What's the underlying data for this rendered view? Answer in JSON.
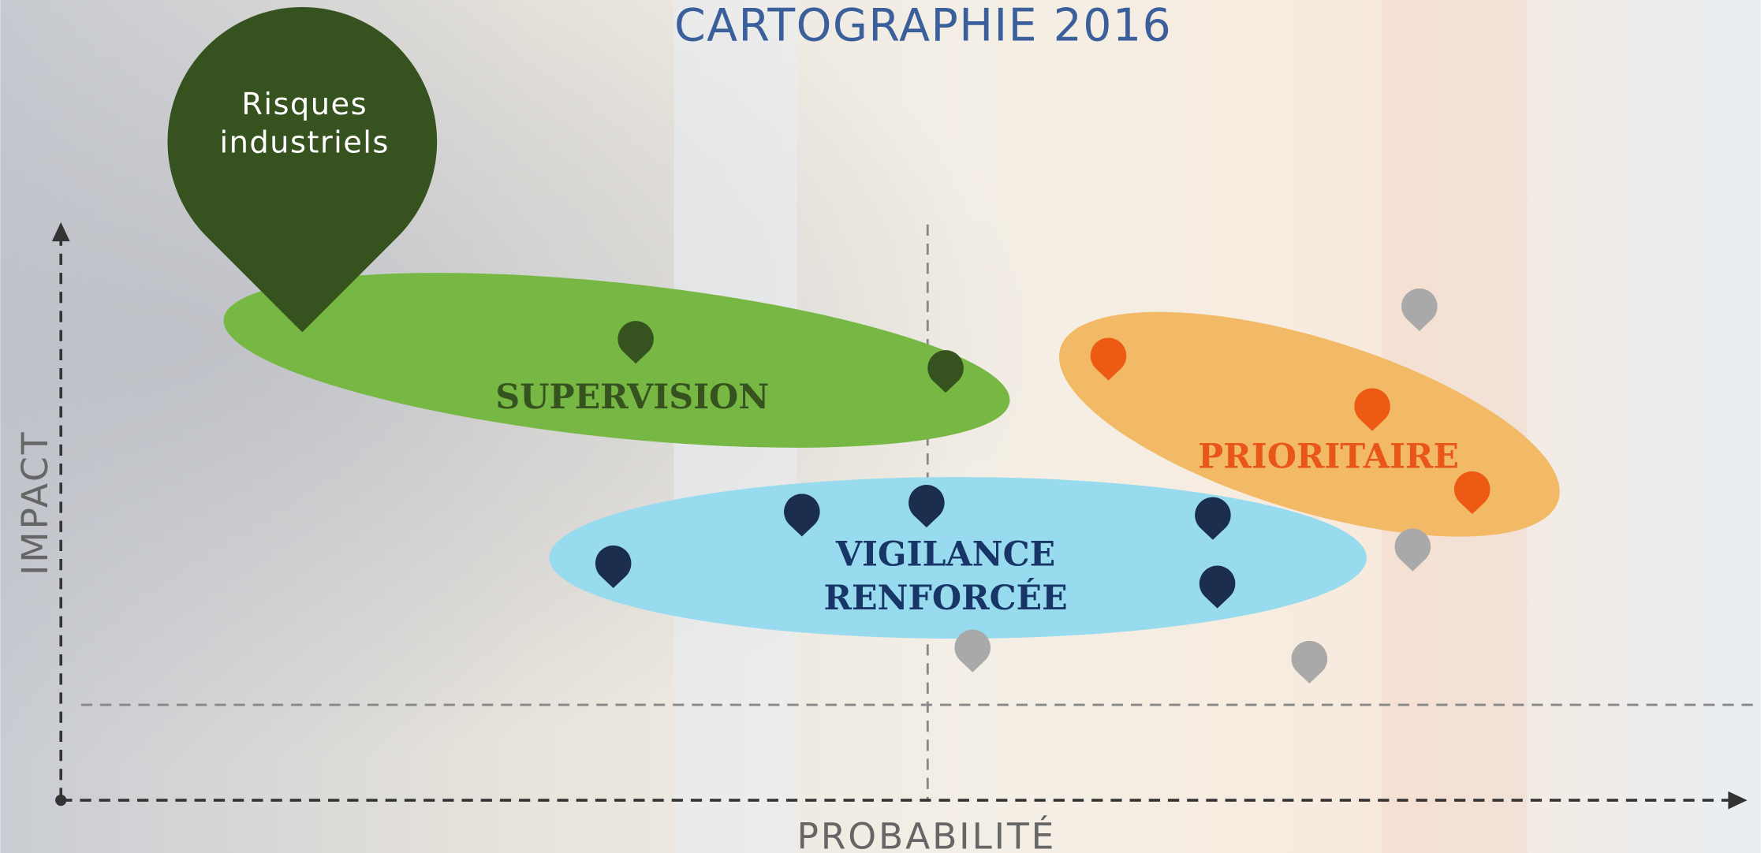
{
  "header": {
    "title": "CARTOGRAPHIE 2016"
  },
  "callout": {
    "lines": [
      "Risques",
      "industriels"
    ]
  },
  "zones": [
    {
      "lines": [
        "SUPERVISION"
      ]
    },
    {
      "lines": [
        "PRIORITAIRE"
      ]
    },
    {
      "lines": [
        "VIGILANCE",
        "RENFORCÉE"
      ]
    }
  ],
  "axes": {
    "y_label": "IMPACT",
    "x_label": "PROBABILITÉ"
  }
}
